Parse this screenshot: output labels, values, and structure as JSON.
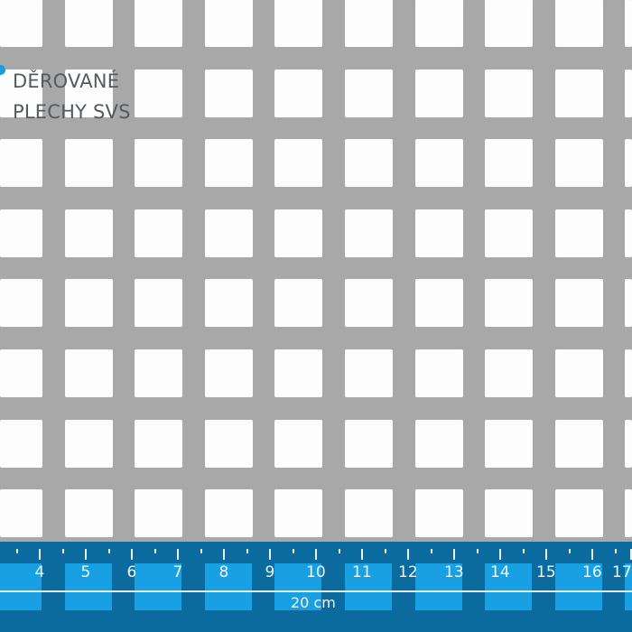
{
  "logo": {
    "line1": "DĚROVANÉ",
    "line2": "PLECHY SVS",
    "accent_color": "#1b9be0"
  },
  "sheet": {
    "color": "#a8a8a8",
    "hole_shape": "square",
    "hole_color": "#fdfdfd"
  },
  "ruler": {
    "color": "#0b6a9e",
    "numbers": [
      "4",
      "5",
      "6",
      "7",
      "8",
      "9",
      "10",
      "11",
      "12",
      "13",
      "14",
      "15",
      "16",
      "17"
    ],
    "label": "20 cm"
  }
}
